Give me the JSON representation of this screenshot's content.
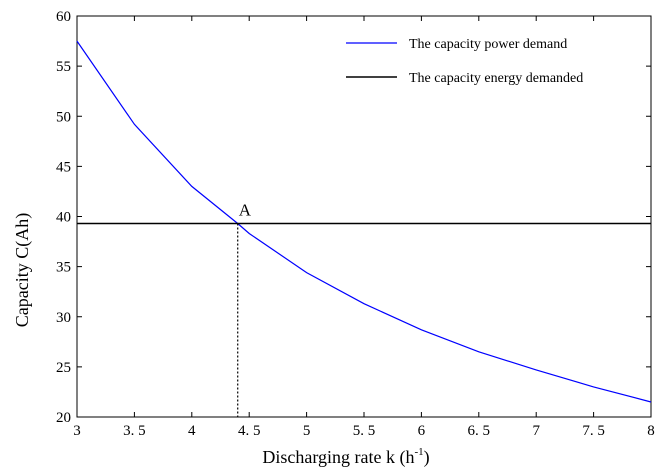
{
  "chart_data": {
    "type": "line",
    "xlabel": "Discharging  rate k (h",
    "xlabel_sup": "-1",
    "xlabel_end": ")",
    "ylabel": "Capacity C(Ah)",
    "xlim": [
      3,
      8
    ],
    "ylim": [
      20,
      60
    ],
    "x_ticks": [
      3,
      3.5,
      4,
      4.5,
      5,
      5.5,
      6,
      6.5,
      7,
      7.5,
      8
    ],
    "x_tick_labels": [
      "3",
      "3. 5",
      "4",
      "4. 5",
      "5",
      "5. 5",
      "6",
      "6. 5",
      "7",
      "7. 5",
      "8"
    ],
    "y_ticks": [
      20,
      25,
      30,
      35,
      40,
      45,
      50,
      55,
      60
    ],
    "y_tick_labels": [
      "20",
      "25",
      "30",
      "35",
      "40",
      "45",
      "50",
      "55",
      "60"
    ],
    "grid": false,
    "legend_position": "top-right",
    "series": [
      {
        "name": "The capacity power demand",
        "color": "#0000ff",
        "x": [
          3,
          3.5,
          4,
          4.4,
          4.5,
          5,
          5.5,
          6,
          6.5,
          7,
          7.5,
          8
        ],
        "y": [
          57.5,
          49.2,
          43.0,
          39.3,
          38.3,
          34.4,
          31.3,
          28.7,
          26.5,
          24.7,
          23.0,
          21.5
        ]
      },
      {
        "name": "The capacity energy demanded",
        "color": "#000000",
        "x": [
          3,
          8
        ],
        "y": [
          39.3,
          39.3
        ]
      }
    ],
    "annotations": [
      {
        "label": "A",
        "x": 4.4,
        "y": 39.3
      }
    ]
  }
}
